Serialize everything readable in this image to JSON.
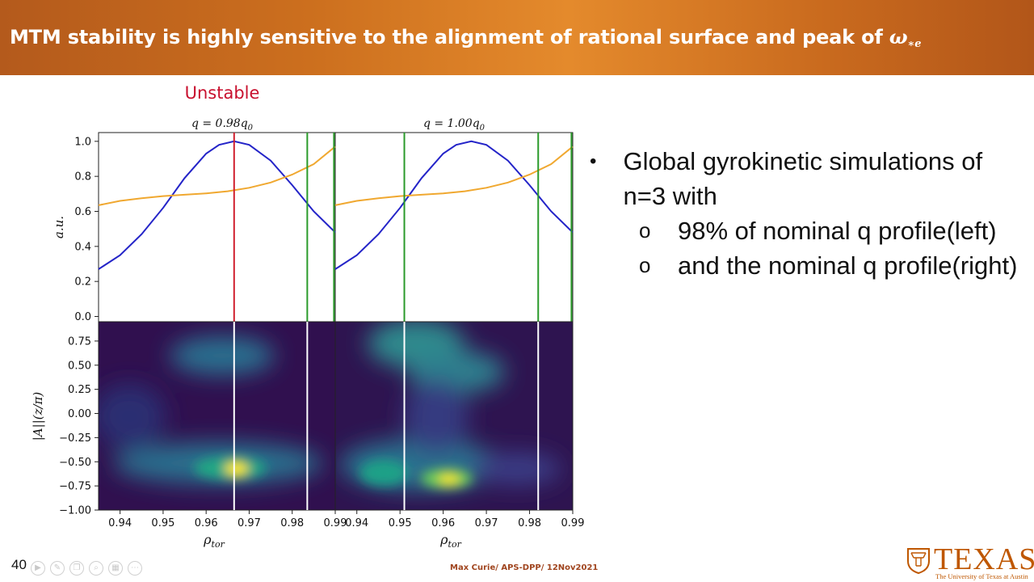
{
  "slide": {
    "title_text": "MTM stability is highly sensitive to the alignment of rational surface and peak of ",
    "title_math": "ω",
    "title_math_sub": "∗e",
    "number": "40",
    "footer_credit": "Max Curie/ APS-DPP/ 12Nov2021",
    "logo": {
      "word": "TEXAS",
      "subtitle": "The University of Texas at Austin",
      "icon": "longhorn-seal-icon"
    },
    "toolbar_icons": [
      "play-icon",
      "pen-icon",
      "copy-icon",
      "zoom-icon",
      "grid-icon",
      "more-icon"
    ]
  },
  "figure": {
    "status_label": "Unstable",
    "status_color": "#c8102e",
    "panel_left_title": "q = 0.98q",
    "panel_left_title_sub": "0",
    "panel_right_title": "q = 1.00q",
    "panel_right_title_sub": "0",
    "top_ylabel": "a.u.",
    "bottom_ylabel": "|A||(z/π)",
    "xlabel": "ρ",
    "xlabel_sub": "tor"
  },
  "chart_data": [
    {
      "type": "line",
      "panel": "top-left",
      "title": "q = 0.98q0",
      "ylabel": "a.u.",
      "xlim": [
        0.935,
        0.99
      ],
      "ylim": [
        -0.03,
        1.05
      ],
      "yticks": [
        0.0,
        0.2,
        0.4,
        0.6,
        0.8,
        1.0
      ],
      "series": [
        {
          "color": "#2424c8",
          "x": [
            0.935,
            0.94,
            0.945,
            0.95,
            0.955,
            0.96,
            0.963,
            0.9665,
            0.97,
            0.975,
            0.98,
            0.985,
            0.99
          ],
          "y": [
            0.27,
            0.35,
            0.47,
            0.62,
            0.79,
            0.93,
            0.98,
            1.0,
            0.98,
            0.89,
            0.75,
            0.6,
            0.48
          ]
        },
        {
          "color": "#f0a830",
          "x": [
            0.935,
            0.94,
            0.945,
            0.95,
            0.955,
            0.96,
            0.965,
            0.97,
            0.975,
            0.98,
            0.985,
            0.99
          ],
          "y": [
            0.635,
            0.66,
            0.675,
            0.687,
            0.695,
            0.703,
            0.715,
            0.735,
            0.765,
            0.81,
            0.87,
            0.97
          ]
        }
      ],
      "vlines": [
        {
          "x": 0.9665,
          "color": "#d0202e"
        },
        {
          "x": 0.9835,
          "color": "#2a9a2a"
        },
        {
          "x": 0.9897,
          "color": "#2a9a2a"
        }
      ]
    },
    {
      "type": "line",
      "panel": "top-right",
      "title": "q = 1.00q0",
      "xlim": [
        0.935,
        0.99
      ],
      "ylim": [
        -0.03,
        1.05
      ],
      "series": [
        {
          "color": "#2424c8",
          "x": [
            0.935,
            0.94,
            0.945,
            0.95,
            0.955,
            0.96,
            0.963,
            0.9665,
            0.97,
            0.975,
            0.98,
            0.985,
            0.99
          ],
          "y": [
            0.27,
            0.35,
            0.47,
            0.62,
            0.79,
            0.93,
            0.98,
            1.0,
            0.98,
            0.89,
            0.75,
            0.6,
            0.48
          ]
        },
        {
          "color": "#f0a830",
          "x": [
            0.935,
            0.94,
            0.945,
            0.95,
            0.955,
            0.96,
            0.965,
            0.97,
            0.975,
            0.98,
            0.985,
            0.99
          ],
          "y": [
            0.635,
            0.66,
            0.675,
            0.687,
            0.695,
            0.703,
            0.715,
            0.735,
            0.765,
            0.81,
            0.87,
            0.97
          ]
        }
      ],
      "vlines": [
        {
          "x": 0.951,
          "color": "#2a9a2a"
        },
        {
          "x": 0.982,
          "color": "#2a9a2a"
        },
        {
          "x": 0.9897,
          "color": "#2a9a2a"
        }
      ]
    },
    {
      "type": "heatmap",
      "panel": "bottom-left",
      "xlim": [
        0.935,
        0.99
      ],
      "ylim": [
        -1.0,
        0.95
      ],
      "yticks": [
        -1.0,
        -0.75,
        -0.5,
        -0.25,
        0.0,
        0.25,
        0.5,
        0.75
      ],
      "xticks": [
        0.94,
        0.95,
        0.96,
        0.97,
        0.98,
        0.99
      ],
      "xticklabels": [
        "0.94",
        "0.95",
        "0.96",
        "0.97",
        "0.98",
        "0.99"
      ],
      "colormap": [
        "#2d1050",
        "#34347f",
        "#2b6e8e",
        "#21a585",
        "#8fd14f",
        "#fde725"
      ],
      "vlines": [
        {
          "x": 0.9665,
          "color": "#ffffff"
        },
        {
          "x": 0.9835,
          "color": "#ffffff"
        }
      ]
    },
    {
      "type": "heatmap",
      "panel": "bottom-right",
      "xlim": [
        0.935,
        0.99
      ],
      "ylim": [
        -1.0,
        0.95
      ],
      "xticks": [
        0.94,
        0.95,
        0.96,
        0.97,
        0.98,
        0.99
      ],
      "xticklabels": [
        "0.94",
        "0.95",
        "0.96",
        "0.97",
        "0.98",
        "0.99"
      ],
      "vlines": [
        {
          "x": 0.951,
          "color": "#ffffff"
        },
        {
          "x": 0.982,
          "color": "#ffffff"
        }
      ]
    }
  ],
  "bullets": {
    "main": "Global gyrokinetic simulations of n=3 with",
    "main_marker": "•",
    "sub_marker": "o",
    "sub": [
      "98% of nominal q profile(left)",
      "and the nominal q profile(right)"
    ]
  }
}
